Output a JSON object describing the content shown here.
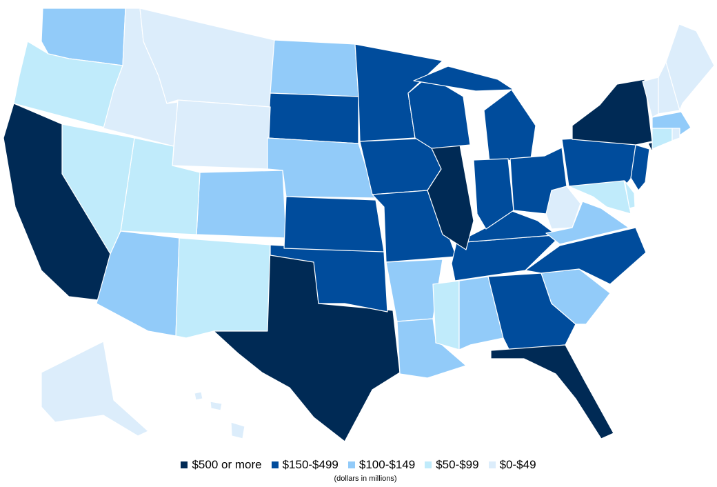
{
  "legend": {
    "items": [
      {
        "label": "$500 or more",
        "color": "#002a55"
      },
      {
        "label": "$150-$499",
        "color": "#004c9c"
      },
      {
        "label": "$100-$149",
        "color": "#92cbf9"
      },
      {
        "label": "$50-$99",
        "color": "#c0ebfb"
      },
      {
        "label": "$0-$49",
        "color": "#dcedfb"
      }
    ],
    "note": "(dollars in millions)"
  },
  "states": {
    "CA": 0,
    "TX": 0,
    "FL": 0,
    "NY": 0,
    "IL": 0,
    "MN": 1,
    "SD": 1,
    "WI": 1,
    "MI": 1,
    "IA": 1,
    "KS": 1,
    "MO": 1,
    "OK": 1,
    "IN": 1,
    "OH": 1,
    "KY": 1,
    "TN": 1,
    "GA": 1,
    "NC": 1,
    "PA": 1,
    "NJ": 1,
    "WA": 2,
    "ND": 2,
    "NE": 2,
    "CO": 2,
    "AZ": 2,
    "AR": 2,
    "LA": 2,
    "AL": 2,
    "SC": 2,
    "VA": 2,
    "MA": 2,
    "OR": 3,
    "NV": 3,
    "UT": 3,
    "NM": 3,
    "MS": 3,
    "CT": 3,
    "MD": 3,
    "DE": 3,
    "ID": 4,
    "MT": 4,
    "WY": 4,
    "ME": 4,
    "NH": 4,
    "VT": 4,
    "RI": 4,
    "WV": 4,
    "AK": 4,
    "HI": 4
  }
}
